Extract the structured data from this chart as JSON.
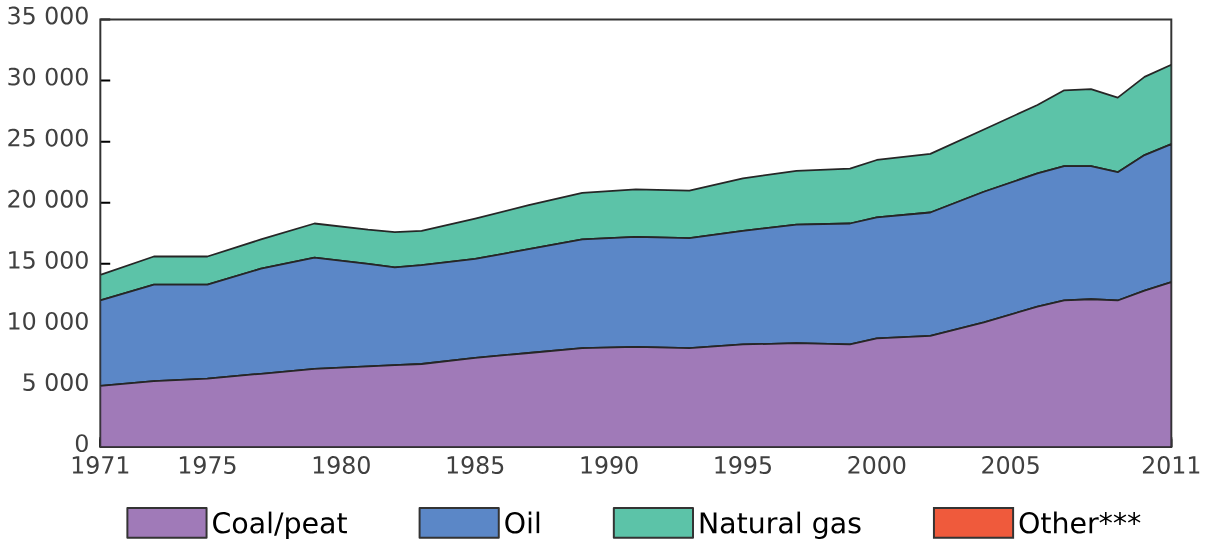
{
  "chart_data": {
    "type": "area",
    "stacked": true,
    "x": [
      1971,
      1973,
      1975,
      1977,
      1979,
      1981,
      1982,
      1983,
      1985,
      1987,
      1989,
      1991,
      1993,
      1995,
      1997,
      1999,
      2000,
      2002,
      2004,
      2006,
      2007,
      2008,
      2009,
      2010,
      2011
    ],
    "series": [
      {
        "name": "Coal/peat",
        "color": "#a07ab8",
        "values": [
          5000,
          5400,
          5600,
          6000,
          6400,
          6600,
          6700,
          6800,
          7300,
          7700,
          8100,
          8200,
          8100,
          8400,
          8500,
          8400,
          8900,
          9100,
          10200,
          11500,
          12000,
          12100,
          12000,
          12800,
          13500
        ]
      },
      {
        "name": "Oil",
        "color": "#5b87c7",
        "values": [
          7000,
          7900,
          7700,
          8600,
          9100,
          8400,
          8000,
          8100,
          8100,
          8500,
          8900,
          9000,
          9000,
          9300,
          9700,
          9900,
          9900,
          10100,
          10700,
          10900,
          11000,
          10900,
          10500,
          11100,
          11300
        ]
      },
      {
        "name": "Natural gas",
        "color": "#5cc3a8",
        "values": [
          2100,
          2300,
          2300,
          2400,
          2800,
          2800,
          2900,
          2800,
          3300,
          3600,
          3800,
          3900,
          3900,
          4300,
          4400,
          4500,
          4700,
          4800,
          5100,
          5600,
          6200,
          6300,
          6100,
          6400,
          6500
        ]
      },
      {
        "name": "Other***",
        "color": "#ef5a3c",
        "values": [
          null,
          null,
          null,
          null,
          null,
          null,
          null,
          null,
          null,
          null,
          null,
          null,
          null,
          null,
          null,
          null,
          null,
          null,
          null,
          null,
          null,
          null,
          null,
          null,
          null
        ]
      }
    ],
    "xlim": [
      1971,
      2011
    ],
    "ylim": [
      0,
      35000
    ],
    "xticks": [
      1971,
      1975,
      1980,
      1985,
      1990,
      1995,
      2000,
      2005,
      2011
    ],
    "yticks": [
      0,
      {
        "value": 5000,
        "label": "5 000"
      },
      {
        "value": 10000,
        "label": "10 000"
      },
      {
        "value": 15000,
        "label": "15 000"
      },
      {
        "value": 20000,
        "label": "20 000"
      },
      {
        "value": 25000,
        "label": "25 000"
      },
      {
        "value": 30000,
        "label": "30 000"
      },
      {
        "value": 35000,
        "label": "35 000"
      }
    ],
    "grid": false,
    "legend": "bottom"
  }
}
